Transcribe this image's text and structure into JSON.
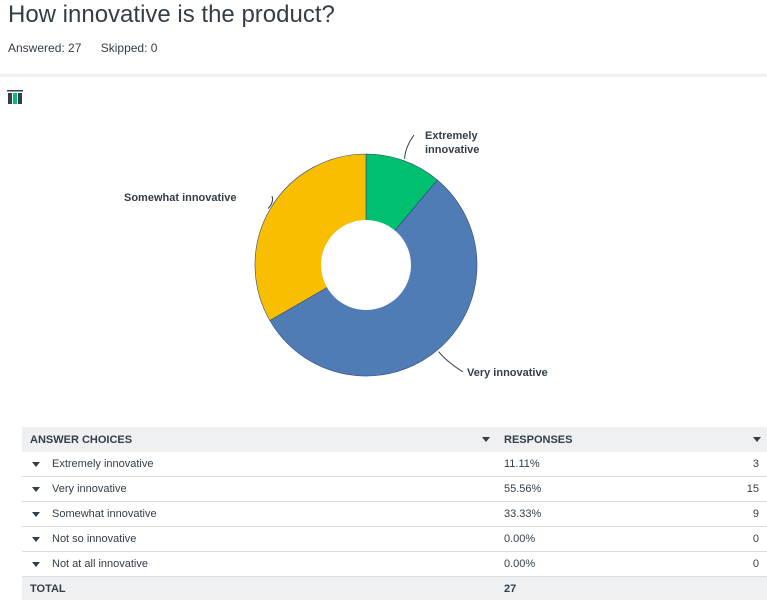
{
  "question": {
    "title": "How innovative is the product?",
    "answered": "Answered: 27",
    "skipped": "Skipped: 0"
  },
  "icons": {
    "chart_type": "bar-chart-icon",
    "sort": "chevron-down-icon"
  },
  "colors": {
    "extremely": "#00bf6f",
    "very": "#507cb6",
    "somewhat": "#f9be00"
  },
  "chart_data": {
    "type": "pie",
    "title": "",
    "categories": [
      "Extremely innovative",
      "Very innovative",
      "Somewhat innovative",
      "Not so innovative",
      "Not at all innovative"
    ],
    "chart_labels": [
      "Extremely innovative",
      "Very innovative",
      "Somewhat innovative"
    ],
    "values": [
      11.11,
      55.56,
      33.33,
      0,
      0
    ],
    "counts": [
      3,
      15,
      9,
      0,
      0
    ],
    "donut": true
  },
  "table": {
    "headers": {
      "choices": "ANSWER CHOICES",
      "responses": "RESPONSES"
    },
    "rows": [
      {
        "label": "Extremely innovative",
        "percent": "11.11%",
        "count": "3"
      },
      {
        "label": "Very innovative",
        "percent": "55.56%",
        "count": "15"
      },
      {
        "label": "Somewhat innovative",
        "percent": "33.33%",
        "count": "9"
      },
      {
        "label": "Not so innovative",
        "percent": "0.00%",
        "count": "0"
      },
      {
        "label": "Not at all innovative",
        "percent": "0.00%",
        "count": "0"
      }
    ],
    "total": {
      "label": "TOTAL",
      "count": "27"
    }
  }
}
